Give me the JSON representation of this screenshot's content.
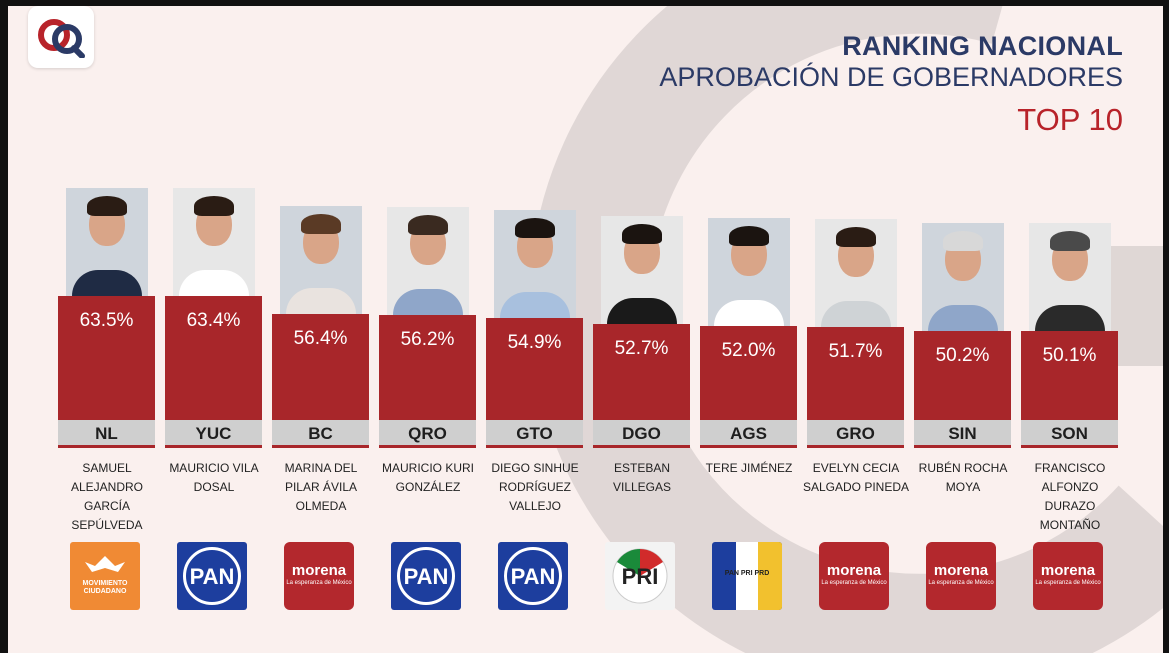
{
  "header": {
    "title_line1": "RANKING NACIONAL",
    "title_line2": "APROBACIÓN DE GOBERNADORES",
    "title_line3": "TOP 10"
  },
  "colors": {
    "bar": "#a8262a",
    "title": "#2b3a66",
    "accent": "#b8232a",
    "background": "#faf0ee"
  },
  "chart_data": {
    "type": "bar",
    "title": "RANKING NACIONAL APROBACIÓN DE GOBERNADORES TOP 10",
    "categories": [
      "NL",
      "YUC",
      "BC",
      "QRO",
      "GTO",
      "DGO",
      "AGS",
      "GRO",
      "SIN",
      "SON"
    ],
    "values": [
      63.5,
      63.4,
      56.4,
      56.2,
      54.9,
      52.7,
      52.0,
      51.7,
      50.2,
      50.1
    ],
    "value_labels": [
      "63.5%",
      "63.4%",
      "56.4%",
      "56.2%",
      "54.9%",
      "52.7%",
      "52.0%",
      "51.7%",
      "50.2%",
      "50.1%"
    ],
    "governors": [
      "Samuel Alejandro García Sepúlveda",
      "Mauricio Vila Dosal",
      "Marina del Pilar Ávila Olmeda",
      "Mauricio Kuri González",
      "Diego Sinhue Rodríguez Vallejo",
      "Esteban Villegas",
      "Tere Jiménez",
      "Evelyn Cecia Salgado Pineda",
      "Rubén Rocha Moya",
      "Francisco Alfonzo Durazo Montaño"
    ],
    "parties": [
      "MOVIMIENTO CIUDADANO",
      "PAN",
      "morena",
      "PAN",
      "PAN",
      "PRI",
      "PAN PRI PRD",
      "morena",
      "morena",
      "morena"
    ],
    "party_icons": [
      "mc-logo",
      "pan-logo",
      "morena-logo",
      "pan-logo",
      "pan-logo",
      "pri-logo",
      "coalition-logo",
      "morena-logo",
      "morena-logo",
      "morena-logo"
    ],
    "morena_tagline": "La esperanza de México",
    "ylabel": "",
    "xlabel": "",
    "ylim": [
      0,
      100
    ],
    "grid": false,
    "legend": "none"
  }
}
